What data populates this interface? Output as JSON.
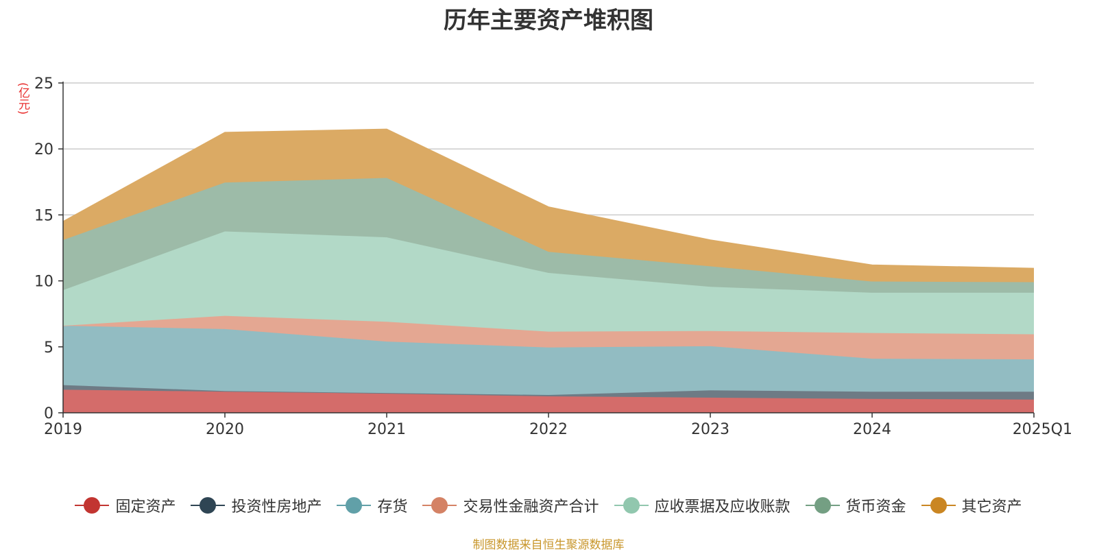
{
  "title": "历年主要资产堆积图",
  "unit_label": "(亿元)",
  "source_note": "制图数据来自恒生聚源数据库",
  "chart_data": {
    "type": "area",
    "stacked": true,
    "title": "历年主要资产堆积图",
    "ylabel": "(亿元)",
    "xlabel": "",
    "categories": [
      "2019",
      "2020",
      "2021",
      "2022",
      "2023",
      "2024",
      "2025Q1"
    ],
    "ylim": [
      0,
      25
    ],
    "yticks": [
      0,
      5,
      10,
      15,
      20,
      25
    ],
    "grid": true,
    "legend_position": "bottom",
    "series": [
      {
        "name": "固定资产",
        "color": "#c23531",
        "area_color": "#d46c6a",
        "values": [
          1.75,
          1.6,
          1.45,
          1.25,
          1.15,
          1.05,
          1.0
        ]
      },
      {
        "name": "投资性房地产",
        "color": "#2f4554",
        "area_color": "#6e7b85",
        "values": [
          0.35,
          0.05,
          0.05,
          0.1,
          0.55,
          0.55,
          0.6
        ]
      },
      {
        "name": "存货",
        "color": "#61a0a8",
        "area_color": "#92bcc2",
        "values": [
          4.5,
          4.7,
          3.9,
          3.6,
          3.35,
          2.5,
          2.45
        ]
      },
      {
        "name": "交易性金融资产合计",
        "color": "#d48265",
        "area_color": "#e4a792",
        "values": [
          0.0,
          1.0,
          1.5,
          1.2,
          1.15,
          1.95,
          1.9
        ]
      },
      {
        "name": "应收票据及应收账款",
        "color": "#91c7ae",
        "area_color": "#b2d9c7",
        "values": [
          2.7,
          6.4,
          6.4,
          4.45,
          3.35,
          3.05,
          3.15
        ]
      },
      {
        "name": "货币资金",
        "color": "#749f83",
        "area_color": "#9dbba8",
        "values": [
          3.8,
          3.7,
          4.5,
          1.6,
          1.55,
          0.85,
          0.8
        ]
      },
      {
        "name": "其它资产",
        "color": "#ca8622",
        "area_color": "#dbaa64",
        "values": [
          1.4,
          3.8,
          3.7,
          3.4,
          2.0,
          1.25,
          1.05
        ]
      }
    ]
  }
}
